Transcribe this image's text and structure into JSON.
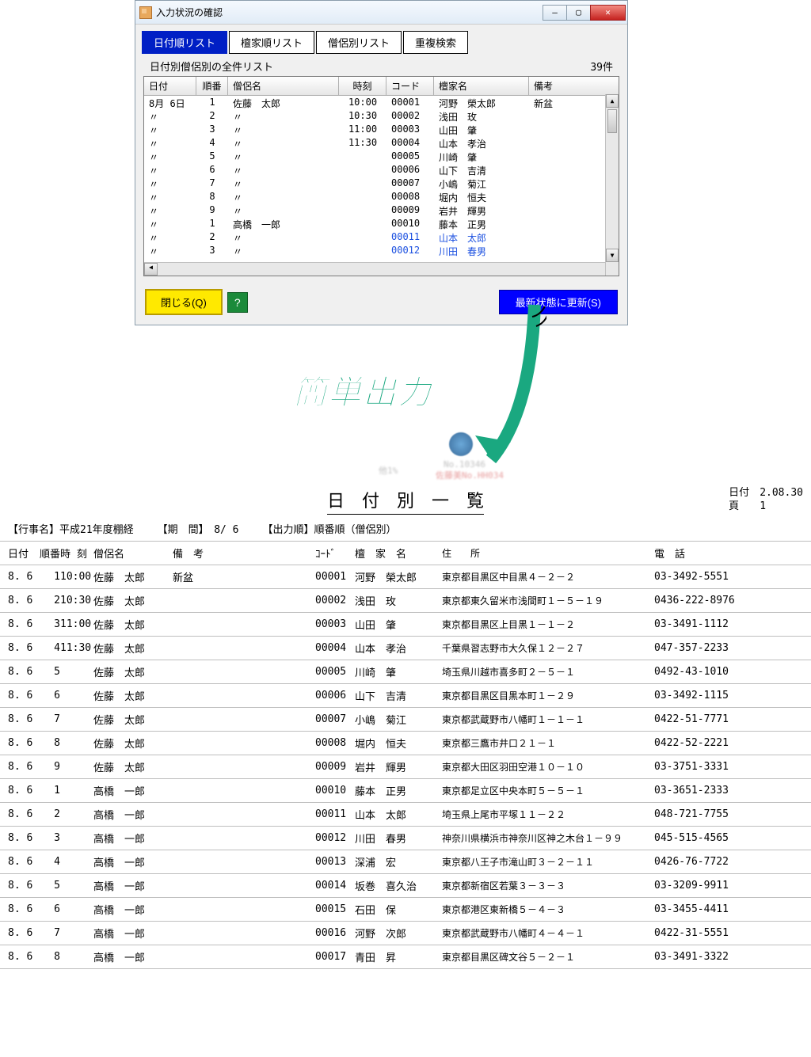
{
  "window": {
    "title": "入力状況の確認",
    "btn_min": "—",
    "btn_max": "▢",
    "btn_close": "✕"
  },
  "tabs": [
    "日付順リスト",
    "檀家順リスト",
    "僧侶別リスト",
    "重複検索"
  ],
  "subtitle": "日付別僧侶別の全件リスト",
  "count": "39件",
  "grid": {
    "headers": [
      "日付",
      "順番",
      "僧侶名",
      "時刻",
      "コード",
      "檀家名",
      "備考"
    ],
    "rows": [
      {
        "date": "8月 6日",
        "ord": "1",
        "monk": "佐藤　太郎",
        "time": "10:00",
        "code": "00001",
        "fam": "河野　榮太郎",
        "note": "新盆",
        "blue": false
      },
      {
        "date": "〃",
        "ord": "2",
        "monk": "〃",
        "time": "10:30",
        "code": "00002",
        "fam": "浅田　玫",
        "note": "",
        "blue": false
      },
      {
        "date": "〃",
        "ord": "3",
        "monk": "〃",
        "time": "11:00",
        "code": "00003",
        "fam": "山田　肇",
        "note": "",
        "blue": false
      },
      {
        "date": "〃",
        "ord": "4",
        "monk": "〃",
        "time": "11:30",
        "code": "00004",
        "fam": "山本　孝治",
        "note": "",
        "blue": false
      },
      {
        "date": "〃",
        "ord": "5",
        "monk": "〃",
        "time": "",
        "code": "00005",
        "fam": "川崎　肇",
        "note": "",
        "blue": false
      },
      {
        "date": "〃",
        "ord": "6",
        "monk": "〃",
        "time": "",
        "code": "00006",
        "fam": "山下　吉清",
        "note": "",
        "blue": false
      },
      {
        "date": "〃",
        "ord": "7",
        "monk": "〃",
        "time": "",
        "code": "00007",
        "fam": "小嶋　菊江",
        "note": "",
        "blue": false
      },
      {
        "date": "〃",
        "ord": "8",
        "monk": "〃",
        "time": "",
        "code": "00008",
        "fam": "堀内　恒夫",
        "note": "",
        "blue": false
      },
      {
        "date": "〃",
        "ord": "9",
        "monk": "〃",
        "time": "",
        "code": "00009",
        "fam": "岩井　輝男",
        "note": "",
        "blue": false
      },
      {
        "date": "〃",
        "ord": "1",
        "monk": "高橋　一郎",
        "time": "",
        "code": "00010",
        "fam": "藤本　正男",
        "note": "",
        "blue": false
      },
      {
        "date": "〃",
        "ord": "2",
        "monk": "〃",
        "time": "",
        "code": "00011",
        "fam": "山本　太郎",
        "note": "",
        "blue": true
      },
      {
        "date": "〃",
        "ord": "3",
        "monk": "〃",
        "time": "",
        "code": "00012",
        "fam": "川田　春男",
        "note": "",
        "blue": true
      }
    ]
  },
  "buttons": {
    "close": "閉じる(Q)",
    "help": "?",
    "refresh": "最新状態に更新(S)"
  },
  "callout": "簡単出力",
  "blur1": "No.10346",
  "blur2": "佐藤美No.HH034",
  "blur3": "他1%",
  "report": {
    "title": "日　付　別　一　覧",
    "meta_date_label": "日付",
    "meta_date": "2.08.30",
    "meta_page_label": "頁",
    "meta_page": "1",
    "event_label": "【行事名】",
    "event": "平成21年度棚経",
    "period_label": "【期　間】",
    "period": "8/ 6",
    "order_label": "【出力順】",
    "order": "順番順（僧侶別）",
    "headers": {
      "date": "日付",
      "ord": "順番",
      "time": "時 刻",
      "monk": "僧侶名",
      "note": "備　考",
      "code": "ｺｰﾄﾞ",
      "fam": "檀　家　名",
      "addr": "住　　所",
      "tel": "電　話"
    },
    "rows": [
      {
        "date": "8. 6",
        "ord": "1",
        "time": "10:00",
        "monk": "佐藤　太郎",
        "note": "新盆",
        "code": "00001",
        "fam": "河野　榮太郎",
        "addr": "東京都目黒区中目黒４－２－２",
        "tel": "03-3492-5551"
      },
      {
        "date": "8. 6",
        "ord": "2",
        "time": "10:30",
        "monk": "佐藤　太郎",
        "note": "",
        "code": "00002",
        "fam": "浅田　玫",
        "addr": "東京都東久留米市浅間町１－５－１９",
        "tel": "0436-222-8976"
      },
      {
        "date": "8. 6",
        "ord": "3",
        "time": "11:00",
        "monk": "佐藤　太郎",
        "note": "",
        "code": "00003",
        "fam": "山田　肇",
        "addr": "東京都目黒区上目黒１－１－２",
        "tel": "03-3491-1112"
      },
      {
        "date": "8. 6",
        "ord": "4",
        "time": "11:30",
        "monk": "佐藤　太郎",
        "note": "",
        "code": "00004",
        "fam": "山本　孝治",
        "addr": "千葉県習志野市大久保１２－２７",
        "tel": "047-357-2233"
      },
      {
        "date": "8. 6",
        "ord": "5",
        "time": "",
        "monk": "佐藤　太郎",
        "note": "",
        "code": "00005",
        "fam": "川崎　肇",
        "addr": "埼玉県川越市喜多町２－５－１",
        "tel": "0492-43-1010"
      },
      {
        "date": "8. 6",
        "ord": "6",
        "time": "",
        "monk": "佐藤　太郎",
        "note": "",
        "code": "00006",
        "fam": "山下　吉清",
        "addr": "東京都目黒区目黒本町１－２９",
        "tel": "03-3492-1115"
      },
      {
        "date": "8. 6",
        "ord": "7",
        "time": "",
        "monk": "佐藤　太郎",
        "note": "",
        "code": "00007",
        "fam": "小嶋　菊江",
        "addr": "東京都武蔵野市八幡町１－１－１",
        "tel": "0422-51-7771"
      },
      {
        "date": "8. 6",
        "ord": "8",
        "time": "",
        "monk": "佐藤　太郎",
        "note": "",
        "code": "00008",
        "fam": "堀内　恒夫",
        "addr": "東京都三鷹市井口２１－１",
        "tel": "0422-52-2221"
      },
      {
        "date": "8. 6",
        "ord": "9",
        "time": "",
        "monk": "佐藤　太郎",
        "note": "",
        "code": "00009",
        "fam": "岩井　輝男",
        "addr": "東京都大田区羽田空港１０－１０",
        "tel": "03-3751-3331"
      },
      {
        "date": "8. 6",
        "ord": "1",
        "time": "",
        "monk": "高橋　一郎",
        "note": "",
        "code": "00010",
        "fam": "藤本　正男",
        "addr": "東京都足立区中央本町５－５－１",
        "tel": "03-3651-2333"
      },
      {
        "date": "8. 6",
        "ord": "2",
        "time": "",
        "monk": "高橋　一郎",
        "note": "",
        "code": "00011",
        "fam": "山本　太郎",
        "addr": "埼玉県上尾市平塚１１－２２",
        "tel": "048-721-7755"
      },
      {
        "date": "8. 6",
        "ord": "3",
        "time": "",
        "monk": "高橋　一郎",
        "note": "",
        "code": "00012",
        "fam": "川田　春男",
        "addr": "神奈川県横浜市神奈川区神之木台１－９９",
        "tel": "045-515-4565"
      },
      {
        "date": "8. 6",
        "ord": "4",
        "time": "",
        "monk": "高橋　一郎",
        "note": "",
        "code": "00013",
        "fam": "深浦　宏",
        "addr": "東京都八王子市滝山町３－２－１１",
        "tel": "0426-76-7722"
      },
      {
        "date": "8. 6",
        "ord": "5",
        "time": "",
        "monk": "高橋　一郎",
        "note": "",
        "code": "00014",
        "fam": "坂巻　喜久治",
        "addr": "東京都新宿区若葉３－３－３",
        "tel": "03-3209-9911"
      },
      {
        "date": "8. 6",
        "ord": "6",
        "time": "",
        "monk": "高橋　一郎",
        "note": "",
        "code": "00015",
        "fam": "石田　保",
        "addr": "東京都港区東新橋５－４－３",
        "tel": "03-3455-4411"
      },
      {
        "date": "8. 6",
        "ord": "7",
        "time": "",
        "monk": "高橋　一郎",
        "note": "",
        "code": "00016",
        "fam": "河野　次郎",
        "addr": "東京都武蔵野市八幡町４－４－１",
        "tel": "0422-31-5551"
      },
      {
        "date": "8. 6",
        "ord": "8",
        "time": "",
        "monk": "高橋　一郎",
        "note": "",
        "code": "00017",
        "fam": "青田　昇",
        "addr": "東京都目黒区碑文谷５－２－１",
        "tel": "03-3491-3322"
      }
    ]
  }
}
